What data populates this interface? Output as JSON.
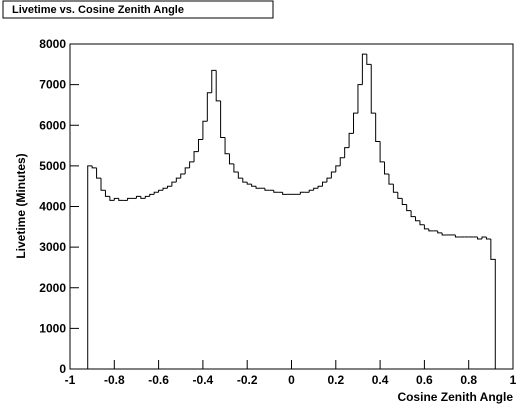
{
  "chart_data": {
    "type": "histogram",
    "title": "Livetime vs. Cosine Zenith Angle",
    "xlabel": "Cosine Zenith Angle",
    "ylabel": "Livetime (Minutes)",
    "color": "#000000",
    "bins": [
      -0.92,
      -0.9,
      -0.88,
      -0.86,
      -0.84,
      -0.82,
      -0.8,
      -0.78,
      -0.76,
      -0.74,
      -0.72,
      -0.7,
      -0.68,
      -0.66,
      -0.64,
      -0.62,
      -0.6,
      -0.58,
      -0.56,
      -0.54,
      -0.52,
      -0.5,
      -0.48,
      -0.46,
      -0.44,
      -0.42,
      -0.4,
      -0.38,
      -0.36,
      -0.34,
      -0.32,
      -0.3,
      -0.28,
      -0.26,
      -0.24,
      -0.22,
      -0.2,
      -0.18,
      -0.16,
      -0.14,
      -0.12,
      -0.1,
      -0.08,
      -0.06,
      -0.04,
      -0.02,
      0,
      0.02,
      0.04,
      0.06,
      0.08,
      0.1,
      0.12,
      0.14,
      0.16,
      0.18,
      0.2,
      0.22,
      0.24,
      0.26,
      0.28,
      0.3,
      0.32,
      0.34,
      0.36,
      0.38,
      0.4,
      0.42,
      0.44,
      0.46,
      0.48,
      0.5,
      0.52,
      0.54,
      0.56,
      0.58,
      0.6,
      0.62,
      0.64,
      0.66,
      0.68,
      0.7,
      0.72,
      0.74,
      0.76,
      0.78,
      0.8,
      0.82,
      0.84,
      0.86,
      0.88,
      0.9,
      0.92
    ],
    "values": [
      5000,
      4950,
      4700,
      4400,
      4250,
      4150,
      4200,
      4150,
      4150,
      4200,
      4200,
      4250,
      4200,
      4250,
      4300,
      4350,
      4400,
      4450,
      4500,
      4600,
      4700,
      4800,
      4950,
      5100,
      5350,
      5650,
      6100,
      6800,
      7350,
      6600,
      5700,
      5300,
      5050,
      4850,
      4700,
      4600,
      4550,
      4500,
      4450,
      4450,
      4400,
      4400,
      4350,
      4350,
      4300,
      4300,
      4300,
      4300,
      4350,
      4350,
      4400,
      4450,
      4500,
      4600,
      4700,
      4850,
      5000,
      5200,
      5450,
      5800,
      6300,
      7000,
      7750,
      7500,
      6300,
      5600,
      5100,
      4800,
      4550,
      4350,
      4200,
      4050,
      3900,
      3750,
      3650,
      3550,
      3450,
      3400,
      3400,
      3350,
      3300,
      3300,
      3300,
      3250,
      3250,
      3250,
      3250,
      3250,
      3200,
      3250,
      3200,
      2700
    ],
    "xlim": [
      -1,
      1
    ],
    "xticks": [
      -1,
      -0.8,
      -0.6,
      -0.4,
      -0.2,
      0,
      0.2,
      0.4,
      0.6,
      0.8,
      1
    ],
    "ylim": [
      0,
      8000
    ],
    "yticks": [
      0,
      1000,
      2000,
      3000,
      4000,
      5000,
      6000,
      7000,
      8000
    ]
  }
}
